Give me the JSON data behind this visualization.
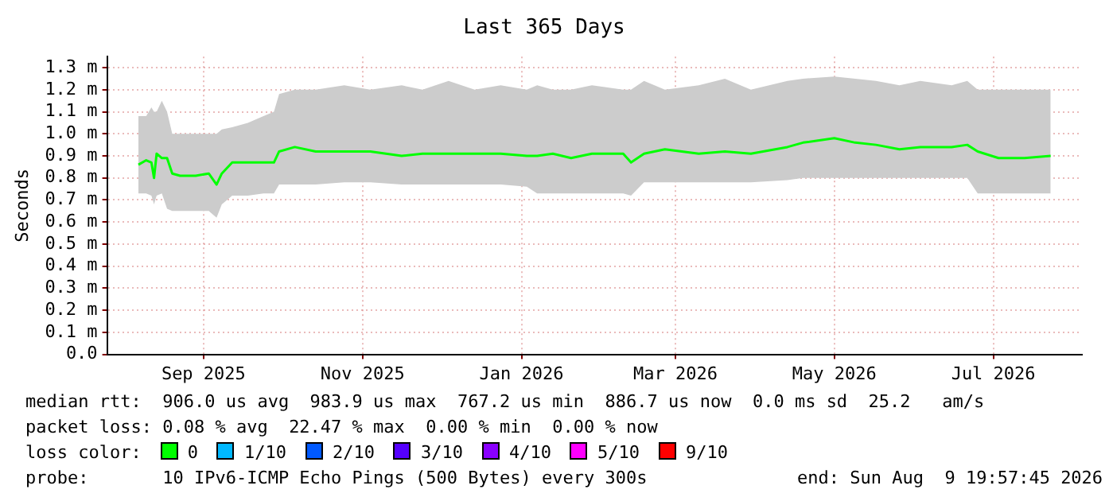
{
  "chart_data": {
    "type": "line",
    "title": "Last 365 Days",
    "ylabel": "Seconds",
    "x": [
      "2025-08-07",
      "2025-08-10",
      "2025-08-12",
      "2025-08-13",
      "2025-08-14",
      "2025-08-16",
      "2025-08-18",
      "2025-08-20",
      "2025-08-23",
      "2025-08-29",
      "2025-09-03",
      "2025-09-06",
      "2025-09-08",
      "2025-09-12",
      "2025-09-18",
      "2025-09-24",
      "2025-09-28",
      "2025-09-30",
      "2025-10-06",
      "2025-10-14",
      "2025-10-25",
      "2025-11-04",
      "2025-11-16",
      "2025-11-24",
      "2025-12-04",
      "2025-12-14",
      "2025-12-24",
      "2026-01-03",
      "2026-01-07",
      "2026-01-13",
      "2026-01-20",
      "2026-01-28",
      "2026-02-09",
      "2026-02-12",
      "2026-02-17",
      "2026-02-25",
      "2026-03-10",
      "2026-03-20",
      "2026-03-30",
      "2026-04-13",
      "2026-04-19",
      "2026-05-01",
      "2026-05-09",
      "2026-05-17",
      "2026-05-26",
      "2026-06-03",
      "2026-06-15",
      "2026-06-21",
      "2026-06-25",
      "2026-07-03",
      "2026-07-13",
      "2026-07-23"
    ],
    "series": [
      {
        "color": "#00ff00",
        "values": [
          0.86,
          0.88,
          0.87,
          0.8,
          0.91,
          0.89,
          0.89,
          0.82,
          0.81,
          0.81,
          0.82,
          0.77,
          0.82,
          0.87,
          0.87,
          0.87,
          0.87,
          0.92,
          0.94,
          0.92,
          0.92,
          0.92,
          0.9,
          0.91,
          0.91,
          0.91,
          0.91,
          0.9,
          0.9,
          0.91,
          0.89,
          0.91,
          0.91,
          0.87,
          0.91,
          0.93,
          0.91,
          0.92,
          0.91,
          0.94,
          0.96,
          0.98,
          0.96,
          0.95,
          0.93,
          0.94,
          0.94,
          0.95,
          0.92,
          0.89,
          0.89,
          0.9
        ],
        "lower": [
          0.73,
          0.73,
          0.72,
          0.68,
          0.72,
          0.73,
          0.66,
          0.65,
          0.65,
          0.65,
          0.65,
          0.62,
          0.68,
          0.72,
          0.72,
          0.73,
          0.73,
          0.77,
          0.77,
          0.77,
          0.78,
          0.78,
          0.77,
          0.77,
          0.77,
          0.77,
          0.77,
          0.76,
          0.73,
          0.73,
          0.73,
          0.73,
          0.73,
          0.72,
          0.78,
          0.78,
          0.78,
          0.78,
          0.78,
          0.79,
          0.8,
          0.8,
          0.8,
          0.8,
          0.8,
          0.8,
          0.8,
          0.8,
          0.73,
          0.73,
          0.73,
          0.73
        ],
        "upper": [
          1.08,
          1.08,
          1.12,
          1.1,
          1.1,
          1.15,
          1.1,
          1.0,
          1.0,
          1.0,
          1.0,
          1.0,
          1.02,
          1.03,
          1.05,
          1.08,
          1.1,
          1.18,
          1.2,
          1.2,
          1.22,
          1.2,
          1.22,
          1.2,
          1.24,
          1.2,
          1.22,
          1.2,
          1.22,
          1.2,
          1.2,
          1.22,
          1.2,
          1.2,
          1.24,
          1.2,
          1.22,
          1.25,
          1.2,
          1.24,
          1.25,
          1.26,
          1.25,
          1.24,
          1.22,
          1.24,
          1.22,
          1.24,
          1.2,
          1.2,
          1.2,
          1.2
        ]
      }
    ],
    "xlim": [
      "2025-07-26",
      "2026-08-04"
    ],
    "xticks": [
      {
        "value": "2025-09-01",
        "label": "Sep 2025"
      },
      {
        "value": "2025-11-01",
        "label": "Nov 2025"
      },
      {
        "value": "2026-01-01",
        "label": "Jan 2026"
      },
      {
        "value": "2026-03-01",
        "label": "Mar 2026"
      },
      {
        "value": "2026-05-01",
        "label": "May 2026"
      },
      {
        "value": "2026-07-01",
        "label": "Jul 2026"
      }
    ],
    "ylim": [
      0,
      1.35
    ],
    "yticks": [
      {
        "value": 0,
        "label": "0.0"
      },
      {
        "value": 0.1,
        "label": "0.1 m"
      },
      {
        "value": 0.2,
        "label": "0.2 m"
      },
      {
        "value": 0.3,
        "label": "0.3 m"
      },
      {
        "value": 0.4,
        "label": "0.4 m"
      },
      {
        "value": 0.5,
        "label": "0.5 m"
      },
      {
        "value": 0.6,
        "label": "0.6 m"
      },
      {
        "value": 0.7,
        "label": "0.7 m"
      },
      {
        "value": 0.8,
        "label": "0.8 m"
      },
      {
        "value": 0.9,
        "label": "0.9 m"
      },
      {
        "value": 1.0,
        "label": "1.0 m"
      },
      {
        "value": 1.1,
        "label": "1.1 m"
      },
      {
        "value": 1.2,
        "label": "1.2 m"
      },
      {
        "value": 1.3,
        "label": "1.3 m"
      }
    ],
    "grid": true,
    "legend": false,
    "marker": "none",
    "line_style": "solid",
    "annotations": [
      "median rtt:  906.0 us avg  983.9 us max  767.2 us min  886.7 us now  0.0 ms sd  25.2   am/s",
      "packet loss: 0.08 % avg  22.47 % max  0.00 % min  0.00 % now",
      "loss color:",
      "0",
      "1/10",
      "2/10",
      "3/10",
      "4/10",
      "5/10",
      "9/10",
      "probe:       10 IPv6-ICMP Echo Pings (500 Bytes) every 300s",
      "end: Sun Aug  9 19:57:45 2026"
    ]
  }
}
